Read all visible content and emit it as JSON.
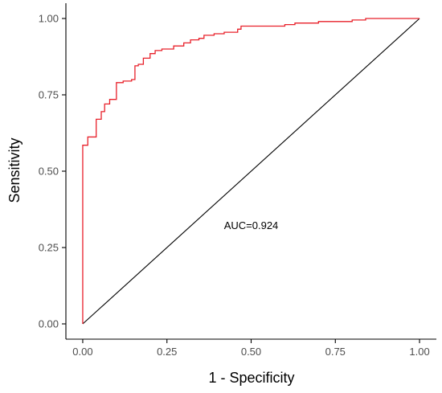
{
  "chart_data": {
    "type": "line",
    "title": "",
    "xlabel": "1 - Specificity",
    "ylabel": "Sensitivity",
    "xlim": [
      -0.05,
      1.05
    ],
    "ylim": [
      -0.05,
      1.05
    ],
    "x_ticks": [
      0.0,
      0.25,
      0.5,
      0.75,
      1.0
    ],
    "x_tick_labels": [
      "0.00",
      "0.25",
      "0.50",
      "0.75",
      "1.00"
    ],
    "y_ticks": [
      0.0,
      0.25,
      0.5,
      0.75,
      1.0
    ],
    "y_tick_labels": [
      "0.00",
      "0.25",
      "0.50",
      "0.75",
      "1.00"
    ],
    "grid": false,
    "annotation": {
      "text": "AUC=0.924",
      "x": 0.5,
      "y": 0.31
    },
    "colors": {
      "roc": "#e8202a",
      "reference": "#000000",
      "axis": "#000000"
    },
    "series": [
      {
        "step": true,
        "color": "#e8202a",
        "points": [
          [
            0.0,
            0.0
          ],
          [
            0.0,
            0.585
          ],
          [
            0.015,
            0.585
          ],
          [
            0.015,
            0.612
          ],
          [
            0.04,
            0.612
          ],
          [
            0.04,
            0.67
          ],
          [
            0.055,
            0.67
          ],
          [
            0.055,
            0.695
          ],
          [
            0.065,
            0.695
          ],
          [
            0.065,
            0.72
          ],
          [
            0.08,
            0.72
          ],
          [
            0.08,
            0.735
          ],
          [
            0.1,
            0.735
          ],
          [
            0.1,
            0.79
          ],
          [
            0.12,
            0.79
          ],
          [
            0.12,
            0.795
          ],
          [
            0.145,
            0.795
          ],
          [
            0.145,
            0.8
          ],
          [
            0.155,
            0.8
          ],
          [
            0.155,
            0.845
          ],
          [
            0.165,
            0.845
          ],
          [
            0.165,
            0.85
          ],
          [
            0.18,
            0.85
          ],
          [
            0.18,
            0.87
          ],
          [
            0.2,
            0.87
          ],
          [
            0.2,
            0.885
          ],
          [
            0.215,
            0.885
          ],
          [
            0.215,
            0.895
          ],
          [
            0.235,
            0.895
          ],
          [
            0.235,
            0.9
          ],
          [
            0.27,
            0.9
          ],
          [
            0.27,
            0.91
          ],
          [
            0.3,
            0.91
          ],
          [
            0.3,
            0.92
          ],
          [
            0.32,
            0.92
          ],
          [
            0.32,
            0.93
          ],
          [
            0.345,
            0.93
          ],
          [
            0.345,
            0.935
          ],
          [
            0.36,
            0.935
          ],
          [
            0.36,
            0.945
          ],
          [
            0.39,
            0.945
          ],
          [
            0.39,
            0.95
          ],
          [
            0.42,
            0.95
          ],
          [
            0.42,
            0.955
          ],
          [
            0.46,
            0.955
          ],
          [
            0.46,
            0.965
          ],
          [
            0.47,
            0.965
          ],
          [
            0.47,
            0.975
          ],
          [
            0.6,
            0.975
          ],
          [
            0.6,
            0.98
          ],
          [
            0.63,
            0.98
          ],
          [
            0.63,
            0.985
          ],
          [
            0.7,
            0.985
          ],
          [
            0.7,
            0.99
          ],
          [
            0.8,
            0.99
          ],
          [
            0.8,
            0.995
          ],
          [
            0.84,
            0.995
          ],
          [
            0.84,
            1.0
          ],
          [
            1.0,
            1.0
          ]
        ]
      }
    ],
    "reference_line": [
      [
        0.0,
        0.0
      ],
      [
        1.0,
        1.0
      ]
    ]
  }
}
